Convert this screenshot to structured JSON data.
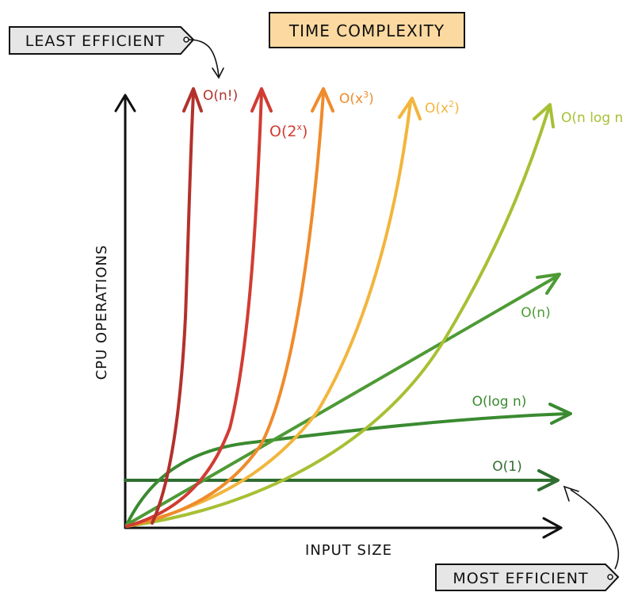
{
  "title": "TIME COMPLEXITY",
  "callouts": {
    "least": "LEAST EFFICIENT",
    "most": "MOST EFFICIENT"
  },
  "axes": {
    "x": "INPUT SIZE",
    "y": "CPU OPERATIONS"
  },
  "colors": {
    "title_fill": "#fbd9a0",
    "callout_fill": "#e6e6e6",
    "axis": "#111111"
  },
  "curves": [
    {
      "key": "factorial",
      "label": "O(n!)",
      "color": "#b3312c"
    },
    {
      "key": "exponential",
      "label_base": "O(2",
      "label_sup": "x",
      "label_end": ")",
      "color": "#d13c33"
    },
    {
      "key": "cubic",
      "label_base": "O(x",
      "label_sup": "3",
      "label_end": ")",
      "color": "#ef8b2b"
    },
    {
      "key": "quadratic",
      "label_base": "O(x",
      "label_sup": "2",
      "label_end": ")",
      "color": "#f2b53c"
    },
    {
      "key": "nlogn",
      "label": "O(n log n",
      "color": "#a6c034"
    },
    {
      "key": "linear",
      "label": "O(n)",
      "color": "#4e9a35"
    },
    {
      "key": "log",
      "label": "O(log n)",
      "color": "#3a8a30"
    },
    {
      "key": "constant",
      "label": "O(1)",
      "color": "#2f6e2f"
    }
  ]
}
